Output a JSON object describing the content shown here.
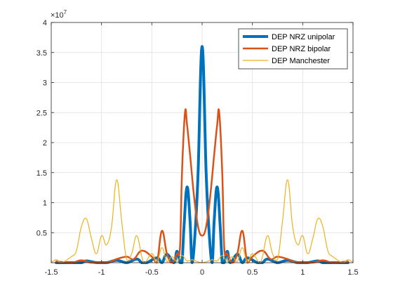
{
  "chart_data": {
    "type": "line",
    "title": "",
    "xlabel": "",
    "ylabel": "",
    "xlim": [
      -1.5,
      1.5
    ],
    "ylim": [
      0,
      4
    ],
    "y_exponent_label": "×10",
    "y_exponent_power": "7",
    "x_ticks": [
      -1.5,
      -1,
      -0.5,
      0,
      0.5,
      1,
      1.5
    ],
    "x_tick_labels": [
      "-1.5",
      "-1",
      "-0.5",
      "0",
      "0.5",
      "1",
      "1.5"
    ],
    "y_ticks": [
      0.5,
      1,
      1.5,
      2,
      2.5,
      3,
      3.5,
      4
    ],
    "y_tick_labels": [
      "0.5",
      "1",
      "1.5",
      "2",
      "2.5",
      "3",
      "3.5",
      "4"
    ],
    "grid": true,
    "legend_position": "top-right",
    "series": [
      {
        "name": "DEP NRZ unipolar",
        "color": "#0072BD",
        "line_width": 4,
        "x": [
          -1.45,
          -1.3,
          -1.2,
          -1.15,
          -1.05,
          -0.95,
          -0.85,
          -0.75,
          -0.65,
          -0.6,
          -0.55,
          -0.45,
          -0.4,
          -0.35,
          -0.28,
          -0.25,
          -0.22,
          -0.2,
          -0.18,
          -0.15,
          -0.12,
          -0.1,
          -0.07,
          -0.04,
          0,
          0.04,
          0.07,
          0.1,
          0.12,
          0.15,
          0.18,
          0.2,
          0.22,
          0.25,
          0.28,
          0.35,
          0.4,
          0.45,
          0.55,
          0.6,
          0.65,
          0.75,
          0.85,
          0.95,
          1.05,
          1.15,
          1.2,
          1.3,
          1.45
        ],
        "y": [
          0.0,
          0.0,
          0.0,
          0.03,
          0.0,
          0.0,
          0.04,
          0.0,
          0.06,
          0.0,
          0.0,
          0.08,
          0.0,
          0.14,
          0.0,
          0.19,
          0.0,
          0.0,
          0.6,
          1.26,
          0.7,
          0.0,
          0.5,
          1.5,
          3.6,
          1.5,
          0.5,
          0.0,
          0.7,
          1.26,
          0.6,
          0.0,
          0.0,
          0.19,
          0.0,
          0.14,
          0.0,
          0.08,
          0.0,
          0.0,
          0.06,
          0.0,
          0.04,
          0.0,
          0.0,
          0.03,
          0.0,
          0.0,
          0.0
        ]
      },
      {
        "name": "DEP NRZ bipolar",
        "color": "#D95319",
        "line_width": 2.5,
        "x": [
          -1.45,
          -1.3,
          -1.2,
          -1.1,
          -0.95,
          -0.85,
          -0.75,
          -0.68,
          -0.6,
          -0.5,
          -0.45,
          -0.4,
          -0.35,
          -0.3,
          -0.25,
          -0.22,
          -0.2,
          -0.17,
          -0.15,
          -0.12,
          -0.08,
          -0.04,
          0,
          0.04,
          0.08,
          0.12,
          0.15,
          0.17,
          0.2,
          0.22,
          0.25,
          0.3,
          0.35,
          0.4,
          0.45,
          0.5,
          0.6,
          0.68,
          0.75,
          0.85,
          0.95,
          1.1,
          1.2,
          1.3,
          1.45
        ],
        "y": [
          0.02,
          0.0,
          0.04,
          0.0,
          0.0,
          0.06,
          0.1,
          0.06,
          0.2,
          0.1,
          0.0,
          0.53,
          0.15,
          0.0,
          0.15,
          0.25,
          1.5,
          2.5,
          2.3,
          1.8,
          1.1,
          0.6,
          0.45,
          0.6,
          1.1,
          1.8,
          2.3,
          2.5,
          1.5,
          0.25,
          0.15,
          0.0,
          0.15,
          0.53,
          0.0,
          0.1,
          0.2,
          0.06,
          0.1,
          0.06,
          0.0,
          0.0,
          0.04,
          0.0,
          0.02
        ]
      },
      {
        "name": "DEP Manchester",
        "color": "#EDB120",
        "line_width": 1.2,
        "x": [
          -1.5,
          -1.45,
          -1.4,
          -1.3,
          -1.25,
          -1.2,
          -1.15,
          -1.1,
          -1.05,
          -1.0,
          -0.95,
          -0.9,
          -0.85,
          -0.8,
          -0.75,
          -0.7,
          -0.65,
          -0.6,
          -0.57,
          -0.5,
          -0.45,
          -0.4,
          -0.35,
          -0.3,
          -0.25,
          -0.2,
          -0.15,
          -0.1,
          -0.05,
          0,
          0.05,
          0.1,
          0.15,
          0.2,
          0.25,
          0.3,
          0.35,
          0.4,
          0.45,
          0.5,
          0.57,
          0.6,
          0.65,
          0.7,
          0.75,
          0.8,
          0.85,
          0.9,
          0.95,
          1.0,
          1.05,
          1.1,
          1.15,
          1.2,
          1.25,
          1.3,
          1.4,
          1.45,
          1.5
        ],
        "y": [
          0.0,
          0.05,
          0.0,
          0.1,
          0.2,
          0.6,
          0.73,
          0.4,
          0.15,
          0.45,
          0.3,
          0.6,
          1.38,
          0.7,
          0.05,
          0.15,
          0.45,
          0.1,
          0.0,
          0.15,
          0.0,
          0.25,
          0.02,
          0.1,
          0.02,
          0.12,
          0.03,
          0.05,
          0.02,
          0.0,
          0.02,
          0.05,
          0.03,
          0.12,
          0.02,
          0.1,
          0.02,
          0.25,
          0.0,
          0.15,
          0.0,
          0.1,
          0.45,
          0.15,
          0.05,
          0.7,
          1.38,
          0.6,
          0.3,
          0.45,
          0.15,
          0.4,
          0.73,
          0.6,
          0.2,
          0.1,
          0.0,
          0.05,
          0.0
        ]
      }
    ]
  }
}
